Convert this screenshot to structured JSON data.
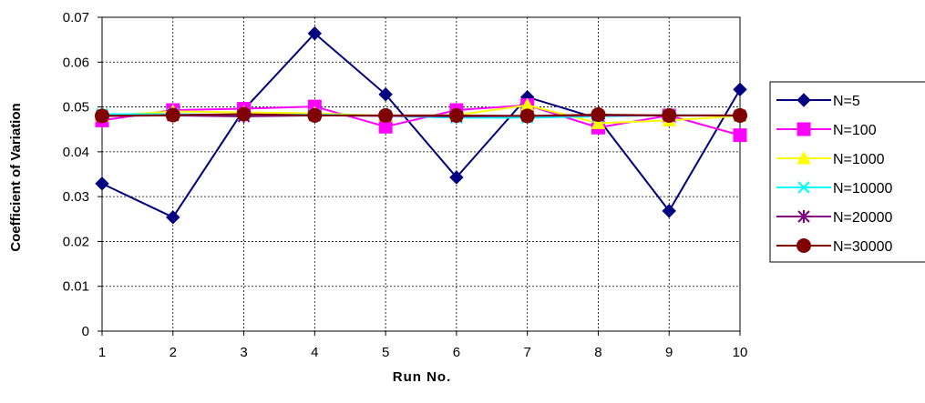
{
  "chart_data": {
    "type": "line",
    "title": "",
    "xlabel": "Run No.",
    "ylabel": "Coefficient of Variation",
    "x": [
      1,
      2,
      3,
      4,
      5,
      6,
      7,
      8,
      9,
      10
    ],
    "xlim": [
      1,
      10
    ],
    "ylim": [
      0,
      0.07
    ],
    "yticks": [
      "0",
      "0.01",
      "0.02",
      "0.03",
      "0.04",
      "0.05",
      "0.06",
      "0.07"
    ],
    "grid": true,
    "legend_position": "right",
    "series": [
      {
        "name": "N=5",
        "color": "#000080",
        "marker": "diamond",
        "values": [
          0.0329,
          0.0254,
          0.0494,
          0.0664,
          0.0528,
          0.0343,
          0.0522,
          0.0474,
          0.0268,
          0.0539
        ]
      },
      {
        "name": "N=100",
        "color": "#FF00FF",
        "marker": "square",
        "values": [
          0.047,
          0.0493,
          0.0496,
          0.0501,
          0.0456,
          0.0493,
          0.0504,
          0.0454,
          0.0481,
          0.0437
        ]
      },
      {
        "name": "N=1000",
        "color": "#FFFF00",
        "marker": "triangle",
        "values": [
          0.048,
          0.049,
          0.0488,
          0.0486,
          0.048,
          0.0482,
          0.0504,
          0.0464,
          0.047,
          0.048
        ]
      },
      {
        "name": "N=10000",
        "color": "#00FFFF",
        "marker": "x",
        "values": [
          0.0484,
          0.0484,
          0.0482,
          0.0483,
          0.048,
          0.0476,
          0.0476,
          0.0479,
          0.0482,
          0.048
        ]
      },
      {
        "name": "N=20000",
        "color": "#800080",
        "marker": "asterisk",
        "values": [
          0.048,
          0.0481,
          0.0479,
          0.0481,
          0.048,
          0.0479,
          0.048,
          0.0481,
          0.0481,
          0.0481
        ]
      },
      {
        "name": "N=30000",
        "color": "#800000",
        "marker": "circle",
        "values": [
          0.048,
          0.0482,
          0.0484,
          0.0481,
          0.0481,
          0.0481,
          0.048,
          0.0483,
          0.0481,
          0.0481
        ]
      }
    ]
  }
}
